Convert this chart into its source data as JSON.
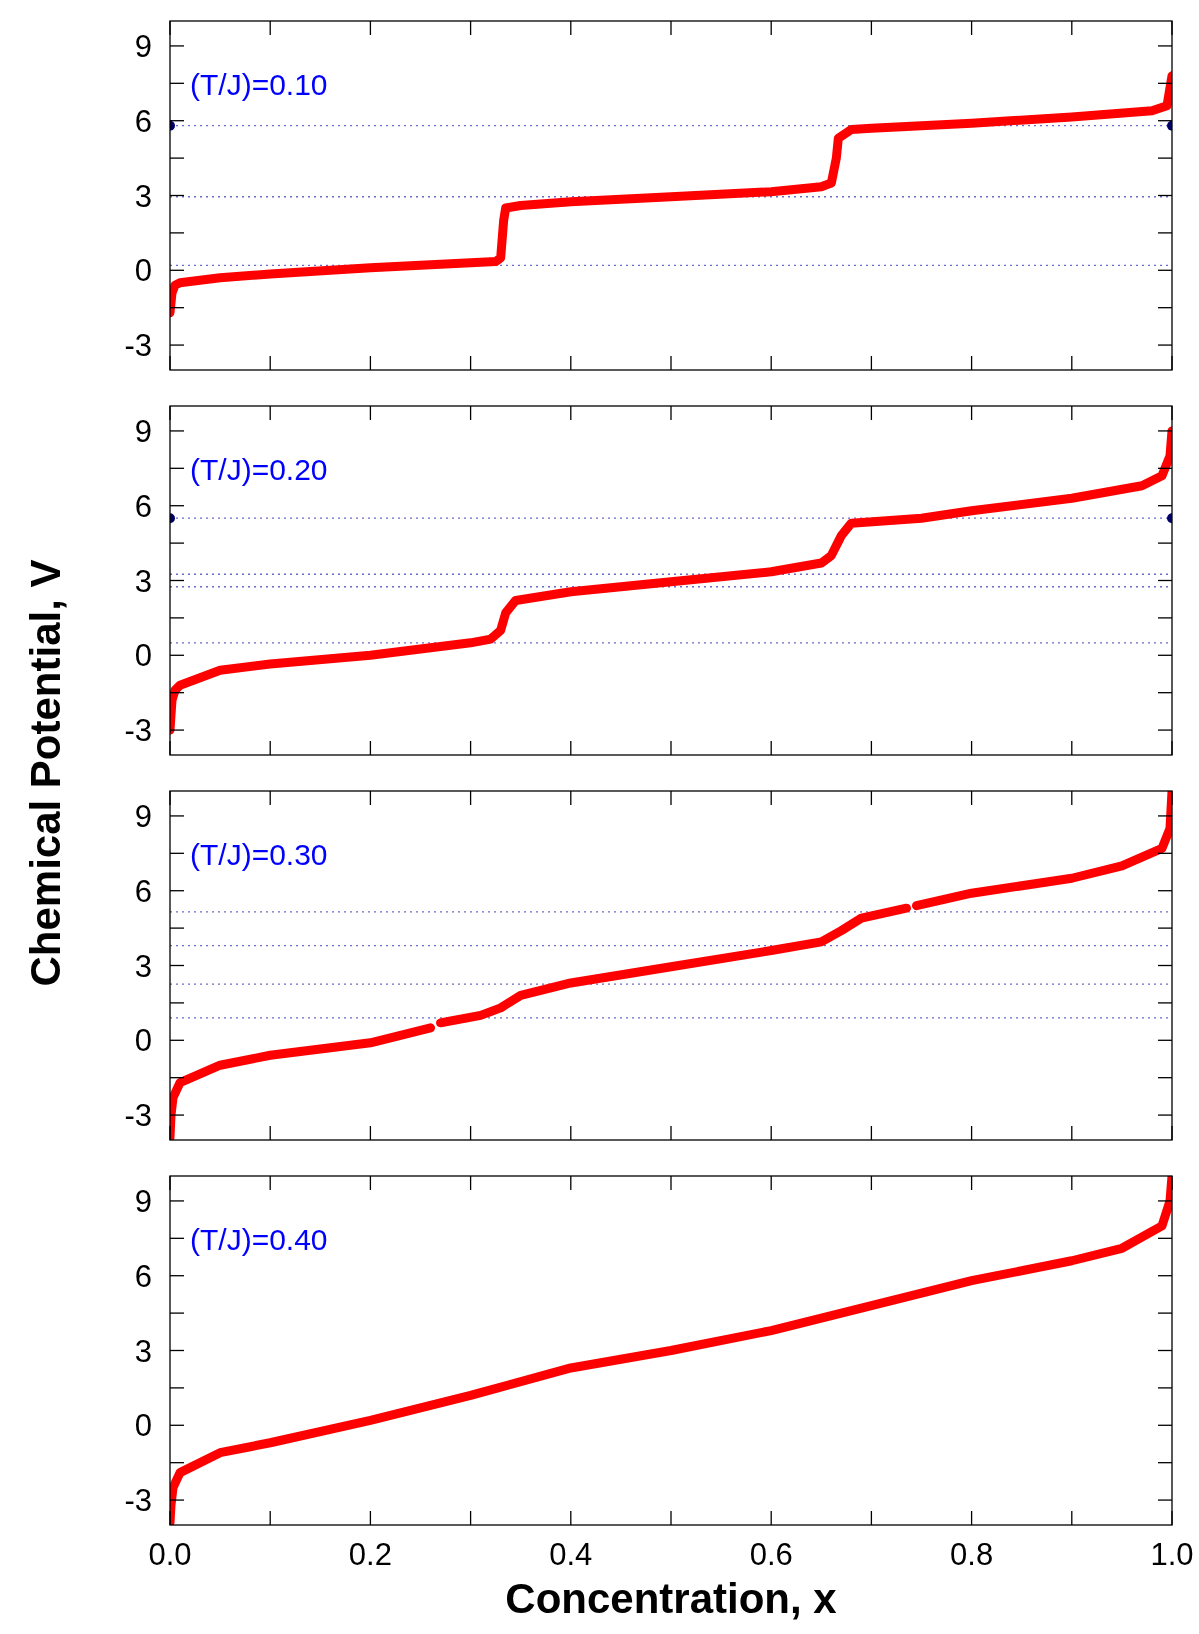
{
  "chart_data": [
    {
      "type": "line",
      "ylabel": "Chemical Potential, V",
      "annotations": [
        "(T/J)=0.10"
      ],
      "xlim": [
        0,
        1
      ],
      "ylim": [
        -4,
        10
      ],
      "xticks": [
        {
          "value": 0,
          "label": null
        },
        {
          "value": 0.1,
          "label": null
        },
        {
          "value": 0.2,
          "label": null
        },
        {
          "value": 0.3,
          "label": null
        },
        {
          "value": 0.4,
          "label": null
        },
        {
          "value": 0.5,
          "label": null
        },
        {
          "value": 0.6,
          "label": null
        },
        {
          "value": 0.7,
          "label": null
        },
        {
          "value": 0.8,
          "label": null
        },
        {
          "value": 0.9,
          "label": null
        },
        {
          "value": 1,
          "label": null
        }
      ],
      "yticks": [
        {
          "value": -3,
          "label": "-3"
        },
        {
          "value": -1.5,
          "label": null
        },
        0,
        {
          "value": 1.5,
          "label": null
        },
        3,
        {
          "value": 4.5,
          "label": null
        },
        6,
        {
          "value": 7.5,
          "label": null
        },
        9
      ],
      "tick_labels": "y",
      "line_style": "solid",
      "marker": "none",
      "ref_lines": [
        {
          "axis": "y",
          "value": 5.8,
          "color": "#6a6ac8",
          "line_style": "dotted"
        },
        {
          "axis": "y",
          "value": 2.95,
          "color": "#6a6ac8",
          "line_style": "dotted"
        },
        {
          "axis": "y",
          "value": 0.2,
          "color": "#6a6ac8",
          "line_style": "dotted"
        }
      ],
      "series": [
        {
          "color": "#ff0000",
          "x": [
            0,
            0.002,
            0.005,
            0.01,
            0.05,
            0.1,
            0.2,
            0.3,
            0.325,
            0.33,
            0.333,
            0.335,
            0.35,
            0.4,
            0.5,
            0.6,
            0.65,
            0.66,
            0.665,
            0.667,
            0.68,
            0.7,
            0.8,
            0.9,
            0.98,
            0.995,
            1.0
          ],
          "values": [
            -1.7,
            -0.9,
            -0.6,
            -0.5,
            -0.3,
            -0.15,
            0.1,
            0.3,
            0.35,
            0.5,
            2.0,
            2.5,
            2.6,
            2.75,
            2.95,
            3.15,
            3.35,
            3.5,
            4.5,
            5.3,
            5.65,
            5.7,
            5.9,
            6.15,
            6.4,
            6.6,
            7.8
          ]
        },
        {
          "type": "scatter",
          "color": "#000066",
          "marker": "circle",
          "x": [
            0,
            1
          ],
          "values": [
            5.8,
            5.8
          ]
        }
      ]
    },
    {
      "type": "line",
      "annotations": [
        "(T/J)=0.20"
      ],
      "xlim": [
        0,
        1
      ],
      "ylim": [
        -4,
        10
      ],
      "xticks": [
        {
          "value": 0,
          "label": null
        },
        {
          "value": 0.1,
          "label": null
        },
        {
          "value": 0.2,
          "label": null
        },
        {
          "value": 0.3,
          "label": null
        },
        {
          "value": 0.4,
          "label": null
        },
        {
          "value": 0.5,
          "label": null
        },
        {
          "value": 0.6,
          "label": null
        },
        {
          "value": 0.7,
          "label": null
        },
        {
          "value": 0.8,
          "label": null
        },
        {
          "value": 0.9,
          "label": null
        },
        {
          "value": 1,
          "label": null
        }
      ],
      "yticks": [
        {
          "value": -3,
          "label": "-3"
        },
        {
          "value": -1.5,
          "label": null
        },
        0,
        {
          "value": 1.5,
          "label": null
        },
        3,
        {
          "value": 4.5,
          "label": null
        },
        6,
        {
          "value": 7.5,
          "label": null
        },
        9
      ],
      "tick_labels": "y",
      "line_style": "solid",
      "marker": "none",
      "ref_lines": [
        {
          "axis": "y",
          "value": 5.5,
          "color": "#6a6ac8",
          "line_style": "dotted"
        },
        {
          "axis": "y",
          "value": 3.25,
          "color": "#6a6ac8",
          "line_style": "dotted"
        },
        {
          "axis": "y",
          "value": 2.75,
          "color": "#6a6ac8",
          "line_style": "dotted"
        },
        {
          "axis": "y",
          "value": 0.5,
          "color": "#6a6ac8",
          "line_style": "dotted"
        }
      ],
      "series": [
        {
          "color": "#ff0000",
          "x": [
            0,
            0.002,
            0.005,
            0.01,
            0.05,
            0.1,
            0.2,
            0.3,
            0.32,
            0.33,
            0.335,
            0.345,
            0.4,
            0.5,
            0.6,
            0.65,
            0.66,
            0.67,
            0.68,
            0.75,
            0.8,
            0.9,
            0.97,
            0.99,
            0.998,
            1.0
          ],
          "values": [
            -3,
            -1.8,
            -1.4,
            -1.2,
            -0.6,
            -0.35,
            0.0,
            0.5,
            0.65,
            1.0,
            1.7,
            2.2,
            2.55,
            2.95,
            3.35,
            3.7,
            4.0,
            4.8,
            5.3,
            5.5,
            5.8,
            6.3,
            6.8,
            7.2,
            8,
            9
          ]
        },
        {
          "type": "scatter",
          "color": "#000066",
          "marker": "circle",
          "x": [
            0,
            1
          ],
          "values": [
            5.5,
            5.5
          ]
        }
      ]
    },
    {
      "type": "line",
      "annotations": [
        "(T/J)=0.30"
      ],
      "xlim": [
        0,
        1
      ],
      "ylim": [
        -4,
        10
      ],
      "xticks": [
        {
          "value": 0,
          "label": null
        },
        {
          "value": 0.1,
          "label": null
        },
        {
          "value": 0.2,
          "label": null
        },
        {
          "value": 0.3,
          "label": null
        },
        {
          "value": 0.4,
          "label": null
        },
        {
          "value": 0.5,
          "label": null
        },
        {
          "value": 0.6,
          "label": null
        },
        {
          "value": 0.7,
          "label": null
        },
        {
          "value": 0.8,
          "label": null
        },
        {
          "value": 0.9,
          "label": null
        },
        {
          "value": 1,
          "label": null
        }
      ],
      "yticks": [
        {
          "value": -3,
          "label": "-3"
        },
        {
          "value": -1.5,
          "label": null
        },
        0,
        {
          "value": 1.5,
          "label": null
        },
        3,
        {
          "value": 4.5,
          "label": null
        },
        6,
        {
          "value": 7.5,
          "label": null
        },
        9
      ],
      "tick_labels": "y",
      "line_style": "solid",
      "marker": "none",
      "ref_lines": [
        {
          "axis": "y",
          "value": 5.15,
          "color": "#6a6ac8",
          "line_style": "dotted"
        },
        {
          "axis": "y",
          "value": 3.8,
          "color": "#6a6ac8",
          "line_style": "dotted"
        },
        {
          "axis": "y",
          "value": 2.25,
          "color": "#6a6ac8",
          "line_style": "dotted"
        },
        {
          "axis": "y",
          "value": 0.9,
          "color": "#6a6ac8",
          "line_style": "dotted"
        }
      ],
      "series": [
        {
          "color": "#ff0000",
          "x": [
            0,
            0.001,
            0.003,
            0.01,
            0.05,
            0.1,
            0.2,
            0.26,
            0.265,
            0.27,
            0.31,
            0.33,
            0.35,
            0.4,
            0.5,
            0.6,
            0.65,
            0.67,
            0.69,
            0.735,
            0.74,
            0.745,
            0.8,
            0.9,
            0.95,
            0.99,
            0.998,
            1.0
          ],
          "values": [
            -3.9,
            -3.0,
            -2.3,
            -1.7,
            -1.0,
            -0.6,
            -0.1,
            0.5,
            null,
            0.7,
            1.0,
            1.3,
            1.8,
            2.3,
            2.95,
            3.6,
            3.95,
            4.4,
            4.9,
            5.3,
            null,
            5.4,
            5.9,
            6.5,
            7.0,
            7.7,
            8.5,
            10
          ]
        }
      ]
    },
    {
      "type": "line",
      "xlabel": "Concentration, x",
      "annotations": [
        "(T/J)=0.40"
      ],
      "xlim": [
        0,
        1
      ],
      "ylim": [
        -4,
        10
      ],
      "xticks": [
        {
          "value": 0,
          "label": "0.0"
        },
        {
          "value": 0.1,
          "label": null
        },
        {
          "value": 0.2,
          "label": "0.2"
        },
        {
          "value": 0.3,
          "label": null
        },
        {
          "value": 0.4,
          "label": "0.4"
        },
        {
          "value": 0.5,
          "label": null
        },
        {
          "value": 0.6,
          "label": "0.6"
        },
        {
          "value": 0.7,
          "label": null
        },
        {
          "value": 0.8,
          "label": "0.8"
        },
        {
          "value": 0.9,
          "label": null
        },
        {
          "value": 1,
          "label": "1.0"
        }
      ],
      "yticks": [
        {
          "value": -3,
          "label": "-3"
        },
        {
          "value": -1.5,
          "label": null
        },
        0,
        {
          "value": 1.5,
          "label": null
        },
        3,
        {
          "value": 4.5,
          "label": null
        },
        6,
        {
          "value": 7.5,
          "label": null
        },
        9
      ],
      "line_style": "solid",
      "marker": "none",
      "series": [
        {
          "color": "#ff0000",
          "x": [
            0,
            0.001,
            0.003,
            0.01,
            0.05,
            0.1,
            0.2,
            0.3,
            0.4,
            0.5,
            0.6,
            0.7,
            0.8,
            0.9,
            0.95,
            0.99,
            0.998,
            1.0
          ],
          "values": [
            -3.9,
            -3.2,
            -2.5,
            -1.9,
            -1.1,
            -0.7,
            0.2,
            1.2,
            2.3,
            3.0,
            3.8,
            4.8,
            5.8,
            6.6,
            7.1,
            8.0,
            9.0,
            10
          ]
        }
      ]
    }
  ]
}
